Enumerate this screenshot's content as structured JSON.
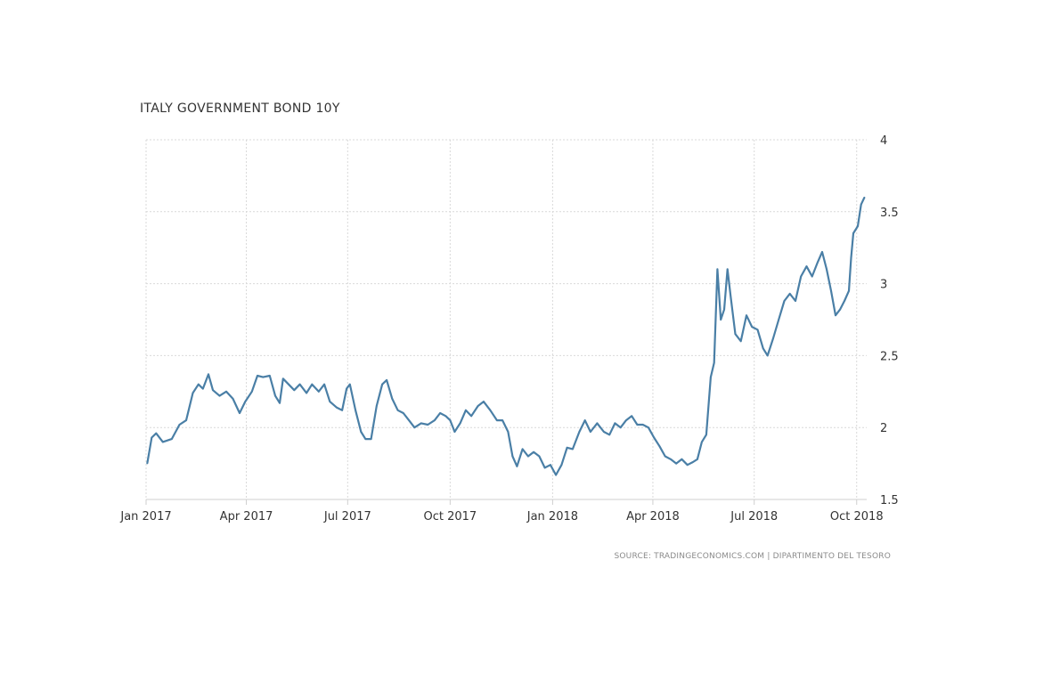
{
  "chart_data": {
    "type": "line",
    "title": "ITALY GOVERNMENT BOND 10Y",
    "xlabel": "",
    "ylabel": "",
    "source": "SOURCE: TRADINGECONOMICS.COM | DIPARTIMENTO DEL TESORO",
    "ylim": [
      1.5,
      4
    ],
    "xlim": [
      "2017-01-01",
      "2018-10-10"
    ],
    "y_ticks": [
      {
        "value": 4,
        "label": "4"
      },
      {
        "value": 3.5,
        "label": "3.5"
      },
      {
        "value": 3,
        "label": "3"
      },
      {
        "value": 2.5,
        "label": "2.5"
      },
      {
        "value": 2,
        "label": "2"
      },
      {
        "value": 1.5,
        "label": "1.5"
      }
    ],
    "x_ticks": [
      {
        "date": "2017-01-01",
        "label": "Jan 2017"
      },
      {
        "date": "2017-04-01",
        "label": "Apr 2017"
      },
      {
        "date": "2017-07-01",
        "label": "Jul 2017"
      },
      {
        "date": "2017-10-01",
        "label": "Oct 2017"
      },
      {
        "date": "2018-01-01",
        "label": "Jan 2018"
      },
      {
        "date": "2018-04-01",
        "label": "Apr 2018"
      },
      {
        "date": "2018-07-01",
        "label": "Jul 2018"
      },
      {
        "date": "2018-10-01",
        "label": "Oct 2018"
      }
    ],
    "grid": true,
    "legend": "none",
    "series_color": "#4a7fa6",
    "series": [
      {
        "points": [
          [
            "2017-01-02",
            1.75
          ],
          [
            "2017-01-06",
            1.93
          ],
          [
            "2017-01-10",
            1.96
          ],
          [
            "2017-01-16",
            1.9
          ],
          [
            "2017-01-24",
            1.92
          ],
          [
            "2017-01-31",
            2.02
          ],
          [
            "2017-02-06",
            2.05
          ],
          [
            "2017-02-12",
            2.24
          ],
          [
            "2017-02-17",
            2.3
          ],
          [
            "2017-02-21",
            2.27
          ],
          [
            "2017-02-26",
            2.37
          ],
          [
            "2017-03-02",
            2.26
          ],
          [
            "2017-03-08",
            2.22
          ],
          [
            "2017-03-14",
            2.25
          ],
          [
            "2017-03-20",
            2.2
          ],
          [
            "2017-03-26",
            2.1
          ],
          [
            "2017-03-31",
            2.18
          ],
          [
            "2017-04-06",
            2.25
          ],
          [
            "2017-04-11",
            2.36
          ],
          [
            "2017-04-16",
            2.35
          ],
          [
            "2017-04-22",
            2.36
          ],
          [
            "2017-04-27",
            2.22
          ],
          [
            "2017-05-01",
            2.17
          ],
          [
            "2017-05-04",
            2.34
          ],
          [
            "2017-05-09",
            2.3
          ],
          [
            "2017-05-14",
            2.26
          ],
          [
            "2017-05-19",
            2.3
          ],
          [
            "2017-05-25",
            2.24
          ],
          [
            "2017-05-30",
            2.3
          ],
          [
            "2017-06-05",
            2.25
          ],
          [
            "2017-06-10",
            2.3
          ],
          [
            "2017-06-15",
            2.18
          ],
          [
            "2017-06-21",
            2.14
          ],
          [
            "2017-06-26",
            2.12
          ],
          [
            "2017-06-30",
            2.27
          ],
          [
            "2017-07-03",
            2.3
          ],
          [
            "2017-07-08",
            2.12
          ],
          [
            "2017-07-13",
            1.97
          ],
          [
            "2017-07-17",
            1.92
          ],
          [
            "2017-07-22",
            1.92
          ],
          [
            "2017-07-27",
            2.15
          ],
          [
            "2017-08-01",
            2.3
          ],
          [
            "2017-08-05",
            2.33
          ],
          [
            "2017-08-10",
            2.2
          ],
          [
            "2017-08-15",
            2.12
          ],
          [
            "2017-08-20",
            2.1
          ],
          [
            "2017-08-25",
            2.05
          ],
          [
            "2017-08-30",
            2.0
          ],
          [
            "2017-09-05",
            2.03
          ],
          [
            "2017-09-11",
            2.02
          ],
          [
            "2017-09-17",
            2.05
          ],
          [
            "2017-09-22",
            2.1
          ],
          [
            "2017-09-27",
            2.08
          ],
          [
            "2017-10-01",
            2.05
          ],
          [
            "2017-10-05",
            1.97
          ],
          [
            "2017-10-10",
            2.03
          ],
          [
            "2017-10-15",
            2.12
          ],
          [
            "2017-10-20",
            2.08
          ],
          [
            "2017-10-26",
            2.15
          ],
          [
            "2017-10-31",
            2.18
          ],
          [
            "2017-11-06",
            2.12
          ],
          [
            "2017-11-12",
            2.05
          ],
          [
            "2017-11-17",
            2.05
          ],
          [
            "2017-11-22",
            1.97
          ],
          [
            "2017-11-26",
            1.8
          ],
          [
            "2017-11-30",
            1.73
          ],
          [
            "2017-12-05",
            1.85
          ],
          [
            "2017-12-10",
            1.8
          ],
          [
            "2017-12-15",
            1.83
          ],
          [
            "2017-12-20",
            1.8
          ],
          [
            "2017-12-25",
            1.72
          ],
          [
            "2017-12-30",
            1.74
          ],
          [
            "2018-01-04",
            1.67
          ],
          [
            "2018-01-09",
            1.74
          ],
          [
            "2018-01-14",
            1.86
          ],
          [
            "2018-01-19",
            1.85
          ],
          [
            "2018-01-25",
            1.97
          ],
          [
            "2018-01-30",
            2.05
          ],
          [
            "2018-02-04",
            1.97
          ],
          [
            "2018-02-10",
            2.03
          ],
          [
            "2018-02-16",
            1.97
          ],
          [
            "2018-02-21",
            1.95
          ],
          [
            "2018-02-26",
            2.03
          ],
          [
            "2018-03-03",
            2.0
          ],
          [
            "2018-03-08",
            2.05
          ],
          [
            "2018-03-13",
            2.08
          ],
          [
            "2018-03-18",
            2.02
          ],
          [
            "2018-03-23",
            2.02
          ],
          [
            "2018-03-28",
            2.0
          ],
          [
            "2018-04-02",
            1.93
          ],
          [
            "2018-04-07",
            1.87
          ],
          [
            "2018-04-12",
            1.8
          ],
          [
            "2018-04-17",
            1.78
          ],
          [
            "2018-04-22",
            1.75
          ],
          [
            "2018-04-27",
            1.78
          ],
          [
            "2018-05-02",
            1.74
          ],
          [
            "2018-05-07",
            1.76
          ],
          [
            "2018-05-11",
            1.78
          ],
          [
            "2018-05-15",
            1.9
          ],
          [
            "2018-05-19",
            1.95
          ],
          [
            "2018-05-23",
            2.35
          ],
          [
            "2018-05-26",
            2.45
          ],
          [
            "2018-05-29",
            3.1
          ],
          [
            "2018-06-01",
            2.75
          ],
          [
            "2018-06-04",
            2.82
          ],
          [
            "2018-06-07",
            3.1
          ],
          [
            "2018-06-10",
            2.9
          ],
          [
            "2018-06-14",
            2.65
          ],
          [
            "2018-06-19",
            2.6
          ],
          [
            "2018-06-24",
            2.78
          ],
          [
            "2018-06-29",
            2.7
          ],
          [
            "2018-07-04",
            2.68
          ],
          [
            "2018-07-09",
            2.55
          ],
          [
            "2018-07-13",
            2.5
          ],
          [
            "2018-07-18",
            2.62
          ],
          [
            "2018-07-23",
            2.75
          ],
          [
            "2018-07-28",
            2.88
          ],
          [
            "2018-08-02",
            2.93
          ],
          [
            "2018-08-07",
            2.88
          ],
          [
            "2018-08-12",
            3.05
          ],
          [
            "2018-08-17",
            3.12
          ],
          [
            "2018-08-22",
            3.05
          ],
          [
            "2018-08-27",
            3.15
          ],
          [
            "2018-08-31",
            3.22
          ],
          [
            "2018-09-04",
            3.1
          ],
          [
            "2018-09-08",
            2.95
          ],
          [
            "2018-09-12",
            2.78
          ],
          [
            "2018-09-16",
            2.82
          ],
          [
            "2018-09-20",
            2.88
          ],
          [
            "2018-09-24",
            2.95
          ],
          [
            "2018-09-26",
            3.18
          ],
          [
            "2018-09-28",
            3.35
          ],
          [
            "2018-10-02",
            3.4
          ],
          [
            "2018-10-05",
            3.55
          ],
          [
            "2018-10-08",
            3.6
          ]
        ]
      }
    ]
  }
}
